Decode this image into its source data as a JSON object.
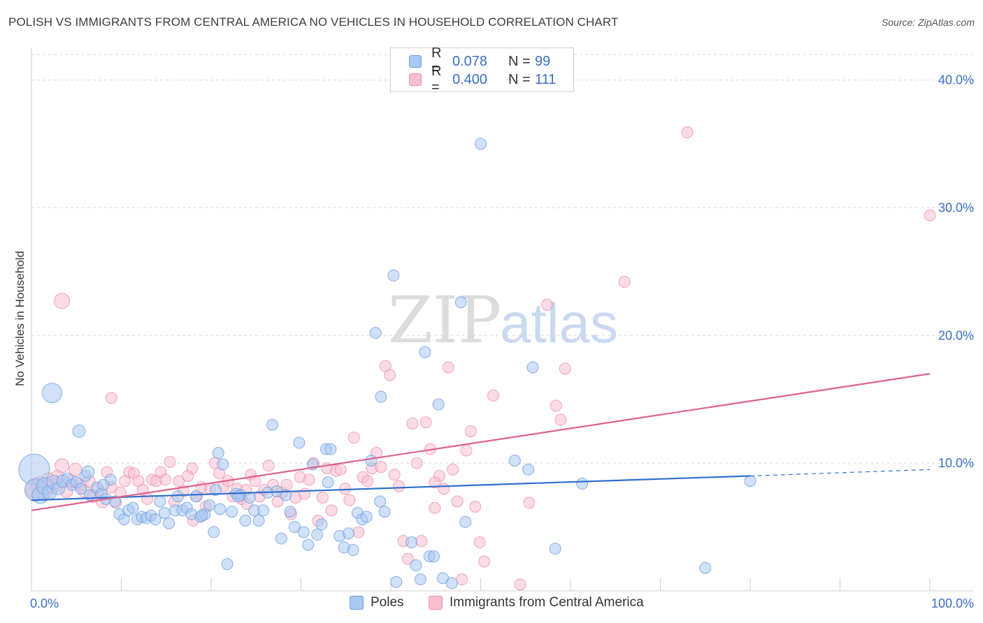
{
  "title": "POLISH VS IMMIGRANTS FROM CENTRAL AMERICA NO VEHICLES IN HOUSEHOLD CORRELATION CHART",
  "source": "Source: ZipAtlas.com",
  "watermark": {
    "zip": "ZIP",
    "atlas": "atlas"
  },
  "legend": {
    "rows": [
      {
        "r_label": "R =",
        "r_value": "0.078",
        "n_label": "N =",
        "n_value": "99"
      },
      {
        "r_label": "R =",
        "r_value": "0.400",
        "n_label": "N =",
        "n_value": "111"
      }
    ]
  },
  "bottom_legend": {
    "series1": "Poles",
    "series2": "Immigrants from Central America"
  },
  "colors": {
    "blue_fill": "#a9c8f2",
    "blue_stroke": "#6f9fe0",
    "blue_line": "#2f6fcf",
    "pink_fill": "#f7bfd0",
    "pink_stroke": "#ec8fac",
    "pink_line": "#e0608a",
    "tick_label": "#3a6fc4",
    "grid": "#dcdcdc"
  },
  "chart_data": {
    "type": "scatter",
    "title": "POLISH VS IMMIGRANTS FROM CENTRAL AMERICA NO VEHICLES IN HOUSEHOLD CORRELATION CHART",
    "xlabel": "",
    "ylabel": "No Vehicles in Household",
    "xlim": [
      0,
      100
    ],
    "ylim": [
      0,
      42
    ],
    "x_ticks": [
      "0.0%",
      "100.0%"
    ],
    "y_ticks": [
      {
        "value": 10,
        "label": "10.0%"
      },
      {
        "value": 20,
        "label": "20.0%"
      },
      {
        "value": 30,
        "label": "30.0%"
      },
      {
        "value": 40,
        "label": "40.0%"
      }
    ],
    "grid": true,
    "series": [
      {
        "name": "Poles",
        "r": 0.078,
        "n": 99,
        "trend": {
          "x0": 0,
          "y0": 7.1,
          "x1": 80,
          "y1": 9.0,
          "dash_x1": 100,
          "dash_y1": 9.5
        },
        "points": [
          [
            0.3,
            9.5,
            22
          ],
          [
            0.5,
            7.9,
            16
          ],
          [
            1,
            7.5,
            12
          ],
          [
            1.5,
            8.2,
            12
          ],
          [
            2,
            7.7,
            10
          ],
          [
            2.5,
            8.5,
            10
          ],
          [
            3,
            8.0,
            9
          ],
          [
            3.5,
            8.6,
            9
          ],
          [
            4,
            8.8,
            8
          ],
          [
            4.5,
            8.3,
            8
          ],
          [
            5,
            8.5,
            8
          ],
          [
            5.5,
            8.0,
            8
          ],
          [
            6,
            9.0,
            8
          ],
          [
            6.5,
            7.5,
            8
          ],
          [
            2.3,
            15.5,
            14
          ],
          [
            5.3,
            12.5,
            9
          ],
          [
            6.3,
            9.3,
            9
          ],
          [
            7.3,
            8.1,
            8
          ],
          [
            7.8,
            7.6,
            8
          ],
          [
            8.3,
            7.2,
            8
          ],
          [
            8.8,
            8.7,
            8
          ],
          [
            9.3,
            7.0,
            8
          ],
          [
            9.8,
            6.0,
            8
          ],
          [
            10.3,
            5.6,
            8
          ],
          [
            10.8,
            6.3,
            8
          ],
          [
            11.3,
            6.5,
            8
          ],
          [
            11.8,
            5.6,
            8
          ],
          [
            12.3,
            5.8,
            8
          ],
          [
            12.8,
            5.7,
            8
          ],
          [
            13.3,
            5.9,
            8
          ],
          [
            13.8,
            5.6,
            8
          ],
          [
            14.3,
            7.0,
            8
          ],
          [
            14.8,
            6.1,
            8
          ],
          [
            15.3,
            5.3,
            8
          ],
          [
            16.0,
            6.3,
            8
          ],
          [
            16.3,
            7.4,
            8
          ],
          [
            16.8,
            6.3,
            8
          ],
          [
            17.3,
            6.5,
            8
          ],
          [
            17.8,
            6.0,
            8
          ],
          [
            18.3,
            7.4,
            8
          ],
          [
            18.8,
            5.8,
            8
          ],
          [
            19.3,
            6.0,
            8
          ],
          [
            19.8,
            6.7,
            8
          ],
          [
            20.3,
            4.6,
            8
          ],
          [
            20.8,
            10.8,
            8
          ],
          [
            21.3,
            9.9,
            8
          ],
          [
            21.8,
            2.1,
            8
          ],
          [
            22.3,
            6.2,
            8
          ],
          [
            22.8,
            7.6,
            8
          ],
          [
            23.3,
            7.5,
            8
          ],
          [
            23.8,
            5.5,
            8
          ],
          [
            24.3,
            7.3,
            8
          ],
          [
            24.8,
            6.3,
            8
          ],
          [
            25.3,
            5.5,
            8
          ],
          [
            25.8,
            6.3,
            8
          ],
          [
            26.3,
            7.7,
            8
          ],
          [
            26.8,
            13.0,
            8
          ],
          [
            27.3,
            7.8,
            8
          ],
          [
            27.8,
            4.1,
            8
          ],
          [
            28.3,
            7.5,
            8
          ],
          [
            28.8,
            6.2,
            8
          ],
          [
            29.3,
            5.0,
            8
          ],
          [
            29.8,
            11.6,
            8
          ],
          [
            30.3,
            4.6,
            8
          ],
          [
            30.8,
            3.6,
            8
          ],
          [
            31.3,
            9.9,
            8
          ],
          [
            31.8,
            4.4,
            8
          ],
          [
            32.3,
            5.2,
            8
          ],
          [
            32.8,
            11.1,
            8
          ],
          [
            33.3,
            11.1,
            8
          ],
          [
            34.3,
            4.3,
            8
          ],
          [
            34.8,
            3.4,
            8
          ],
          [
            35.3,
            4.5,
            8
          ],
          [
            35.8,
            3.2,
            8
          ],
          [
            36.3,
            6.1,
            8
          ],
          [
            36.8,
            5.6,
            8
          ],
          [
            37.8,
            10.2,
            8
          ],
          [
            38.3,
            20.2,
            8
          ],
          [
            38.8,
            7.0,
            8
          ],
          [
            38.9,
            15.2,
            8
          ],
          [
            39.3,
            6.2,
            8
          ],
          [
            40.3,
            24.7,
            8
          ],
          [
            40.6,
            0.7,
            8
          ],
          [
            42.3,
            3.8,
            8
          ],
          [
            42.8,
            2.0,
            8
          ],
          [
            43.3,
            0.9,
            8
          ],
          [
            43.8,
            18.7,
            8
          ],
          [
            44.3,
            2.7,
            8
          ],
          [
            44.8,
            2.7,
            8
          ],
          [
            45.3,
            14.6,
            8
          ],
          [
            45.8,
            1.0,
            8
          ],
          [
            46.8,
            0.6,
            8
          ],
          [
            47.8,
            22.6,
            8
          ],
          [
            48.3,
            5.4,
            8
          ],
          [
            50.0,
            35.0,
            8
          ],
          [
            53.8,
            10.2,
            8
          ],
          [
            55.3,
            9.5,
            8
          ],
          [
            55.8,
            17.5,
            8
          ],
          [
            58.3,
            3.3,
            8
          ],
          [
            61.3,
            8.4,
            8
          ],
          [
            75.0,
            1.8,
            8
          ],
          [
            80.0,
            8.6,
            8
          ],
          [
            23.0,
            7.4,
            8
          ],
          [
            21.0,
            6.4,
            8
          ],
          [
            19.0,
            5.9,
            8
          ],
          [
            20.5,
            7.9,
            8
          ],
          [
            8.0,
            8.3,
            8
          ],
          [
            33.0,
            8.5,
            8
          ],
          [
            37.3,
            5.8,
            8
          ]
        ]
      },
      {
        "name": "Immigrants from Central America",
        "r": 0.4,
        "n": 111,
        "trend": {
          "x0": 0,
          "y0": 6.3,
          "x1": 100,
          "y1": 17.0
        },
        "points": [
          [
            0.4,
            8.0,
            14
          ],
          [
            0.9,
            8.3,
            12
          ],
          [
            1.4,
            7.7,
            12
          ],
          [
            1.9,
            8.7,
            10
          ],
          [
            2.4,
            8.2,
            10
          ],
          [
            2.9,
            8.9,
            10
          ],
          [
            3.4,
            9.8,
            10
          ],
          [
            3.9,
            7.8,
            9
          ],
          [
            4.4,
            8.6,
            9
          ],
          [
            4.9,
            9.5,
            9
          ],
          [
            5.4,
            8.3,
            9
          ],
          [
            5.9,
            7.8,
            9
          ],
          [
            6.4,
            8.6,
            9
          ],
          [
            6.9,
            7.4,
            9
          ],
          [
            3.4,
            22.7,
            11
          ],
          [
            8.9,
            15.1,
            8
          ],
          [
            7.4,
            7.9,
            9
          ],
          [
            7.9,
            7.0,
            9
          ],
          [
            8.4,
            9.3,
            8
          ],
          [
            8.9,
            8.1,
            8
          ],
          [
            9.4,
            6.9,
            8
          ],
          [
            9.9,
            7.7,
            8
          ],
          [
            10.4,
            8.6,
            8
          ],
          [
            10.9,
            9.3,
            8
          ],
          [
            11.4,
            9.2,
            8
          ],
          [
            11.9,
            8.6,
            8
          ],
          [
            12.4,
            7.9,
            8
          ],
          [
            12.9,
            7.2,
            8
          ],
          [
            13.4,
            8.7,
            8
          ],
          [
            13.9,
            8.6,
            8
          ],
          [
            14.4,
            9.3,
            8
          ],
          [
            14.9,
            8.7,
            8
          ],
          [
            15.4,
            10.1,
            8
          ],
          [
            15.9,
            7.0,
            8
          ],
          [
            16.4,
            8.6,
            8
          ],
          [
            16.9,
            7.8,
            8
          ],
          [
            17.4,
            9.0,
            8
          ],
          [
            17.9,
            9.6,
            8
          ],
          [
            18.4,
            7.4,
            8
          ],
          [
            18.9,
            8.1,
            8
          ],
          [
            19.4,
            6.6,
            8
          ],
          [
            19.9,
            8.0,
            8
          ],
          [
            20.4,
            10.0,
            8
          ],
          [
            20.9,
            9.2,
            8
          ],
          [
            21.4,
            8.2,
            8
          ],
          [
            21.9,
            8.6,
            8
          ],
          [
            22.4,
            7.4,
            8
          ],
          [
            22.9,
            8.0,
            8
          ],
          [
            23.4,
            7.2,
            8
          ],
          [
            23.9,
            7.9,
            8
          ],
          [
            24.4,
            9.1,
            8
          ],
          [
            24.9,
            8.6,
            8
          ],
          [
            25.4,
            7.4,
            8
          ],
          [
            25.9,
            7.9,
            8
          ],
          [
            26.4,
            9.8,
            8
          ],
          [
            26.9,
            8.3,
            8
          ],
          [
            27.4,
            7.0,
            8
          ],
          [
            27.9,
            7.7,
            8
          ],
          [
            28.4,
            8.3,
            8
          ],
          [
            28.9,
            6.0,
            8
          ],
          [
            29.4,
            7.3,
            8
          ],
          [
            29.9,
            8.9,
            8
          ],
          [
            30.4,
            7.6,
            8
          ],
          [
            30.9,
            8.7,
            8
          ],
          [
            31.4,
            10.0,
            8
          ],
          [
            31.9,
            5.5,
            8
          ],
          [
            32.4,
            7.3,
            8
          ],
          [
            32.9,
            9.6,
            8
          ],
          [
            33.4,
            6.3,
            8
          ],
          [
            33.9,
            9.4,
            8
          ],
          [
            34.4,
            9.5,
            8
          ],
          [
            34.9,
            8.0,
            8
          ],
          [
            35.4,
            7.1,
            8
          ],
          [
            35.9,
            12.0,
            8
          ],
          [
            36.4,
            4.6,
            8
          ],
          [
            36.9,
            8.9,
            8
          ],
          [
            37.4,
            8.6,
            8
          ],
          [
            37.9,
            9.6,
            8
          ],
          [
            38.4,
            10.8,
            8
          ],
          [
            38.9,
            9.7,
            8
          ],
          [
            39.4,
            17.6,
            8
          ],
          [
            39.9,
            16.9,
            8
          ],
          [
            40.4,
            9.1,
            8
          ],
          [
            40.9,
            8.2,
            8
          ],
          [
            41.4,
            3.9,
            8
          ],
          [
            41.9,
            2.5,
            8
          ],
          [
            42.4,
            13.1,
            8
          ],
          [
            42.9,
            10.0,
            8
          ],
          [
            43.4,
            3.9,
            8
          ],
          [
            43.9,
            13.2,
            8
          ],
          [
            44.4,
            11.1,
            8
          ],
          [
            44.9,
            6.5,
            8
          ],
          [
            45.4,
            9.0,
            8
          ],
          [
            45.9,
            8.0,
            8
          ],
          [
            46.4,
            17.5,
            8
          ],
          [
            46.9,
            9.5,
            8
          ],
          [
            47.4,
            7.0,
            8
          ],
          [
            47.9,
            0.9,
            8
          ],
          [
            48.4,
            11.0,
            8
          ],
          [
            48.9,
            12.5,
            8
          ],
          [
            49.4,
            6.6,
            8
          ],
          [
            49.9,
            3.8,
            8
          ],
          [
            50.4,
            2.3,
            8
          ],
          [
            51.4,
            15.3,
            8
          ],
          [
            54.4,
            0.5,
            8
          ],
          [
            55.4,
            6.9,
            8
          ],
          [
            57.4,
            22.4,
            8
          ],
          [
            58.4,
            14.5,
            8
          ],
          [
            58.9,
            13.4,
            8
          ],
          [
            59.4,
            17.4,
            8
          ],
          [
            66.0,
            24.2,
            8
          ],
          [
            73.0,
            35.9,
            8
          ],
          [
            100.0,
            29.4,
            8
          ],
          [
            44.9,
            8.5,
            8
          ],
          [
            24.0,
            6.8,
            8
          ],
          [
            18.0,
            5.5,
            8
          ]
        ]
      }
    ]
  }
}
